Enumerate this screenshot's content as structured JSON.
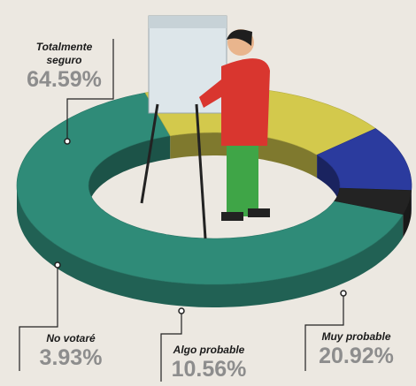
{
  "chart_data": {
    "type": "pie",
    "donut": true,
    "categories": [
      "Totalmente seguro",
      "Muy probable",
      "Algo probable",
      "No votaré"
    ],
    "values": [
      64.59,
      20.92,
      10.56,
      3.93
    ],
    "value_labels": [
      "64.59%",
      "20.92%",
      "10.56%",
      "3.93%"
    ],
    "colors": [
      "#2f8b78",
      "#d3c94c",
      "#2b3b9e",
      "#232323"
    ]
  }
}
